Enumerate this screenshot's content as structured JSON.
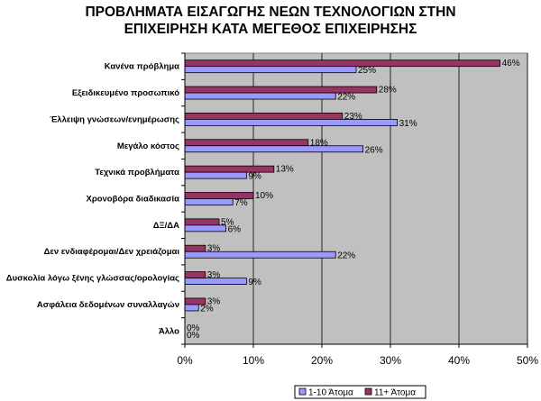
{
  "chart_data": {
    "type": "bar",
    "orientation": "horizontal",
    "title_lines": [
      "ΠΡΟΒΛΗΜΑΤΑ ΕΙΣΑΓΩΓΗΣ ΝΕΩΝ ΤΕΧΝΟΛΟΓΙΩΝ ΣΤΗΝ",
      "ΕΠΙΧΕΙΡΗΣΗ ΚΑΤΑ ΜΕΓΕΘΟΣ ΕΠΙΧΕΙΡΗΣΗΣ"
    ],
    "categories": [
      "Κανένα πρόβλημα",
      "Εξειδικευμένο προσωπικό",
      "Έλλειψη γνώσεων/ενημέρωσης",
      "Μεγάλο κόστος",
      "Τεχνικά προβλήματα",
      "Χρονοβόρα διαδικασία",
      "ΔΞ/ΔΑ",
      "Δεν ενδιαφέρομαι/Δεν χρειάζομαι",
      "Δυσκολία λόγω ξένης γλώσσας/ορολογίας",
      "Ασφάλεια δεδομένων συναλλαγών",
      "Άλλο"
    ],
    "series": [
      {
        "name": "11+ Άτομα",
        "color": "#993366",
        "values": [
          46,
          28,
          23,
          18,
          13,
          10,
          5,
          3,
          3,
          3,
          0
        ]
      },
      {
        "name": "1-10 Άτομα",
        "color": "#9999FF",
        "values": [
          25,
          22,
          31,
          26,
          9,
          7,
          6,
          22,
          9,
          2,
          0
        ]
      }
    ],
    "value_labels": {
      "11+ Άτομα": [
        "46%",
        "28%",
        "23%",
        "18%",
        "13%",
        "10%",
        "5%",
        "3%",
        "3%",
        "3%",
        "0%"
      ],
      "1-10 Άτομα": [
        "25%",
        "22%",
        "31%",
        "26%",
        "9%",
        "7%",
        "6%",
        "22%",
        "9%",
        "2%",
        "0%"
      ]
    },
    "xlim": [
      0,
      50
    ],
    "xticks": [
      0,
      10,
      20,
      30,
      40,
      50
    ],
    "xtick_labels": [
      "0%",
      "10%",
      "20%",
      "30%",
      "40%",
      "50%"
    ],
    "plot_background": "#C0C0C0",
    "legend": {
      "placement": "bottom-right",
      "entries": [
        {
          "label": "1-10 Άτομα",
          "color": "#9999FF"
        },
        {
          "label": "11+ Άτομα",
          "color": "#993366"
        }
      ]
    }
  }
}
